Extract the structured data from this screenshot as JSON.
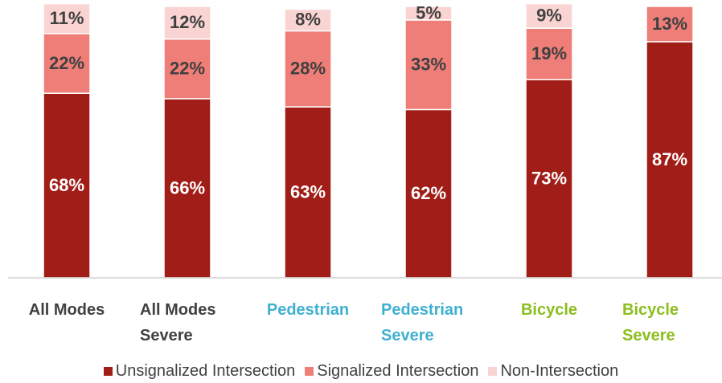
{
  "chart_data": {
    "type": "stacked_bar",
    "categories": [
      "All Modes",
      "All Modes Severe",
      "Pedestrian",
      "Pedestrian Severe",
      "Bicycle",
      "Bicycle Severe"
    ],
    "category_colors": [
      "#404040",
      "#404040",
      "#3fb0d0",
      "#3fb0d0",
      "#8cbe1e",
      "#8cbe1e"
    ],
    "ylim": [
      0,
      100
    ],
    "legend": "bottom",
    "series": [
      {
        "name": "Unsignalized Intersection",
        "color": "#a11d17",
        "label_color": "#ffffff",
        "values": [
          68,
          66,
          63,
          62,
          73,
          87
        ],
        "value_labels": [
          "68%",
          "66%",
          "63%",
          "62%",
          "73%",
          "87%"
        ]
      },
      {
        "name": "Signalized Intersection",
        "color": "#ef7e78",
        "label_color": "#404040",
        "values": [
          22,
          22,
          28,
          33,
          19,
          13
        ],
        "value_labels": [
          "22%",
          "22%",
          "28%",
          "33%",
          "19%",
          "13%"
        ]
      },
      {
        "name": "Non-Intersection",
        "color": "#f9d4d3",
        "label_color": "#404040",
        "values": [
          11,
          12,
          8,
          5,
          9,
          null
        ],
        "value_labels": [
          "11%",
          "12%",
          "8%",
          "5%",
          "9%",
          null
        ]
      }
    ]
  }
}
